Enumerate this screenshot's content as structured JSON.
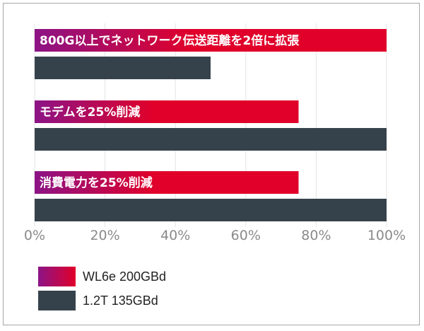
{
  "chart_data": {
    "type": "bar",
    "orientation": "horizontal",
    "categories": [
      "800G以上でネットワーク伝送距離を2倍に拡張",
      "モデムを25%削減",
      "消費電力を25%削減"
    ],
    "series": [
      {
        "name": "WL6e 200GBd",
        "values": [
          100,
          75,
          75
        ],
        "color": "#e0002a",
        "gradient_from": "#8c1486"
      },
      {
        "name": "1.2T 135GBd",
        "values": [
          50,
          100,
          100
        ],
        "color": "#36424b"
      }
    ],
    "xlim": [
      0,
      100
    ],
    "xticks": [
      "0%",
      "20%",
      "40%",
      "60%",
      "80%",
      "100%"
    ],
    "grid": true,
    "legend_position": "bottom-left",
    "labels_inside_first_series_bars": true
  }
}
